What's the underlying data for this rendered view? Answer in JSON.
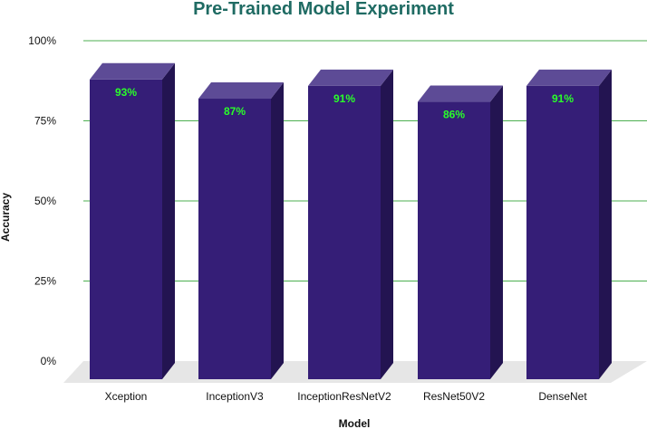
{
  "chart_data": {
    "type": "bar",
    "title": "Pre-Trained Model Experiment",
    "xlabel": "Model",
    "ylabel": "Accuracy",
    "categories": [
      "Xception",
      "InceptionV3",
      "InceptionResNetV2",
      "ResNet50V2",
      "DenseNet"
    ],
    "values": [
      0.93,
      0.87,
      0.91,
      0.86,
      0.91
    ],
    "data_labels": [
      "93%",
      "87%",
      "91%",
      "86%",
      "91%"
    ],
    "yticks": [
      "0%",
      "25%",
      "50%",
      "75%",
      "100%"
    ],
    "ylim": [
      0,
      1
    ],
    "grid": true,
    "style": "3d",
    "colors": {
      "title": "#1f6b63",
      "bar_front": "#351e77",
      "bar_top": "#5d4b96",
      "bar_side": "#231451",
      "data_label": "#2aff2a",
      "gridline": "#4caf50",
      "floor": "#e6e6e6",
      "text": "#111111"
    }
  }
}
